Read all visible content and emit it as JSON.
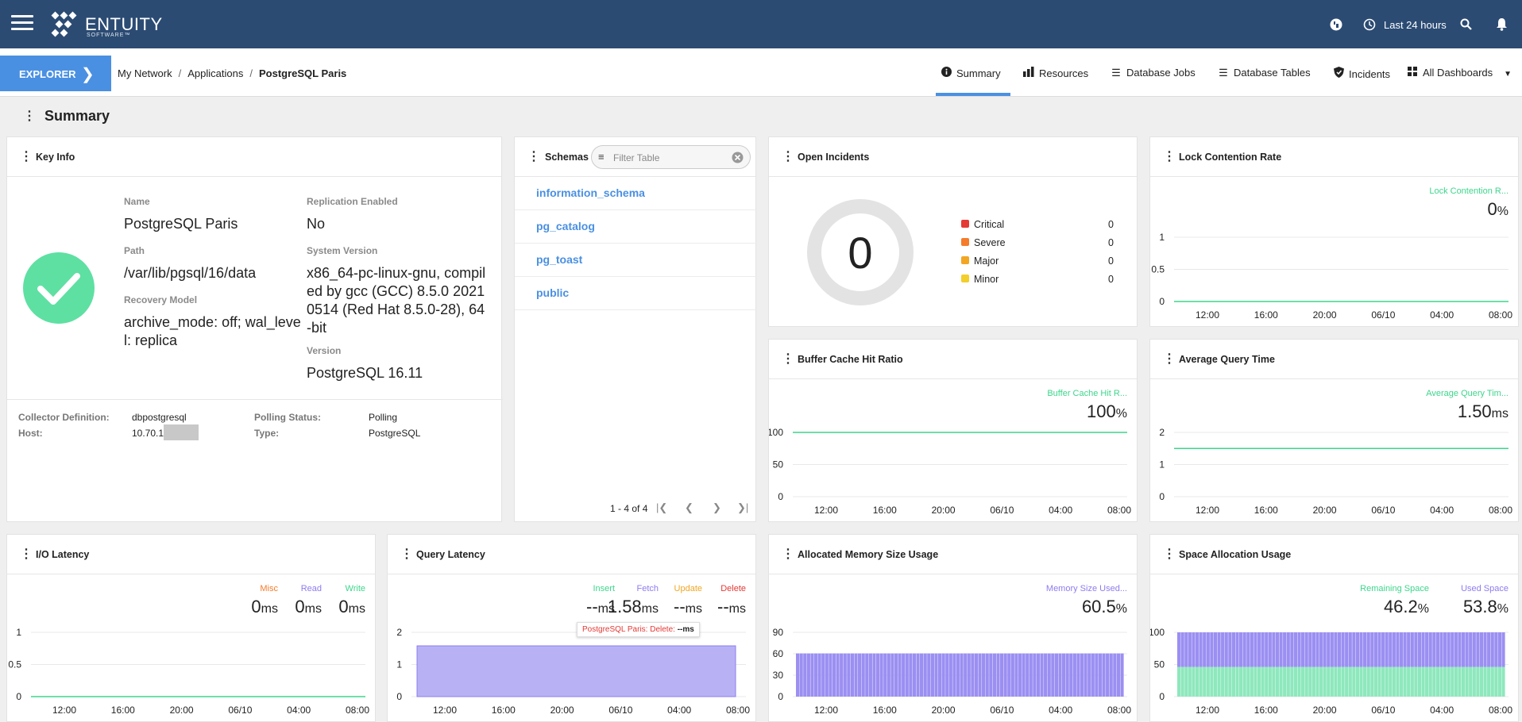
{
  "topbar": {
    "brand": "ENTUITY",
    "brand_sub": "SOFTWARE™",
    "time_range": "Last 24 hours"
  },
  "nav": {
    "explorer": "EXPLORER",
    "breadcrumb": [
      "My Network",
      "Applications",
      "PostgreSQL Paris"
    ],
    "tabs": [
      {
        "label": "Summary",
        "icon": "info-icon"
      },
      {
        "label": "Resources",
        "icon": "bar-chart-icon"
      },
      {
        "label": "Database Jobs",
        "icon": "list-icon"
      },
      {
        "label": "Database Tables",
        "icon": "list-icon"
      },
      {
        "label": "Incidents",
        "icon": "shield-icon"
      },
      {
        "label": "All Dashboards",
        "icon": "grid-icon"
      }
    ]
  },
  "page": {
    "title": "Summary"
  },
  "key_info": {
    "title": "Key Info",
    "name_label": "Name",
    "name": "PostgreSQL Paris",
    "path_label": "Path",
    "path": "/var/lib/pgsql/16/data",
    "recovery_label": "Recovery Model",
    "recovery": "archive_mode: off; wal_level: replica",
    "replication_label": "Replication Enabled",
    "replication": "No",
    "sysver_label": "System Version",
    "sysver": "x86_64-pc-linux-gnu, compiled by gcc (GCC) 8.5.0 20210514 (Red Hat 8.5.0-28), 64-bit",
    "version_label": "Version",
    "version": "PostgreSQL 16.11",
    "collector_label": "Collector Definition:",
    "collector": "dbpostgresql",
    "host_label": "Host:",
    "host": "10.70.1",
    "polling_label": "Polling Status:",
    "polling": "Polling",
    "type_label": "Type:",
    "type": "PostgreSQL"
  },
  "schemas": {
    "title": "Schemas",
    "filter_placeholder": "Filter Table",
    "rows": [
      "information_schema",
      "pg_catalog",
      "pg_toast",
      "public"
    ],
    "pager": "1 - 4 of 4"
  },
  "incidents": {
    "title": "Open Incidents",
    "total": "0",
    "legend": [
      {
        "label": "Critical",
        "count": "0",
        "color": "#e53935"
      },
      {
        "label": "Severe",
        "count": "0",
        "color": "#f57c2a"
      },
      {
        "label": "Major",
        "count": "0",
        "color": "#f2a623"
      },
      {
        "label": "Minor",
        "count": "0",
        "color": "#f2cf2a"
      }
    ]
  },
  "time_ticks": [
    "12:00",
    "16:00",
    "20:00",
    "06/10",
    "04:00",
    "08:00"
  ],
  "colors": {
    "green": "#3dd68c",
    "purple": "#8e7cf0",
    "orange": "#f57c2a",
    "red": "#e53935",
    "yellow": "#f2a623",
    "blue": "#4a90e2"
  },
  "chart_data": [
    {
      "id": "lock",
      "title": "Lock Contention Rate",
      "type": "line",
      "series": [
        {
          "name": "Lock Contention R...",
          "value": "0",
          "unit": "%"
        }
      ],
      "yticks": [
        "1",
        "0.5",
        "0"
      ],
      "ylim": [
        0,
        1
      ],
      "level": 0
    },
    {
      "id": "buffer",
      "title": "Buffer Cache Hit Ratio",
      "type": "line",
      "series": [
        {
          "name": "Buffer Cache Hit R...",
          "value": "100",
          "unit": "%"
        }
      ],
      "yticks": [
        "100",
        "50",
        "0"
      ],
      "ylim": [
        0,
        100
      ],
      "level": 100
    },
    {
      "id": "avgq",
      "title": "Average Query Time",
      "type": "line",
      "series": [
        {
          "name": "Average Query Tim...",
          "value": "1.50",
          "unit": "ms"
        }
      ],
      "yticks": [
        "2",
        "1",
        "0"
      ],
      "ylim": [
        0,
        2
      ],
      "level": 1.5
    },
    {
      "id": "io",
      "title": "I/O Latency",
      "type": "line",
      "series": [
        {
          "name": "Misc",
          "value": "0",
          "unit": "ms"
        },
        {
          "name": "Read",
          "value": "0",
          "unit": "ms"
        },
        {
          "name": "Write",
          "value": "0",
          "unit": "ms"
        }
      ],
      "yticks": [
        "1",
        "0.5",
        "0"
      ],
      "ylim": [
        0,
        1
      ],
      "level": 0
    },
    {
      "id": "ql",
      "title": "Query Latency",
      "type": "area",
      "series": [
        {
          "name": "Insert",
          "value": "--",
          "unit": "ms"
        },
        {
          "name": "Fetch",
          "value": "1.58",
          "unit": "ms"
        },
        {
          "name": "Update",
          "value": "--",
          "unit": "ms"
        },
        {
          "name": "Delete",
          "value": "--",
          "unit": "ms"
        }
      ],
      "yticks": [
        "2",
        "1",
        "0"
      ],
      "ylim": [
        0,
        2
      ],
      "level": 1.58,
      "tooltip": {
        "label": "PostgreSQL Paris: Delete:",
        "value": "--ms"
      }
    },
    {
      "id": "mem",
      "title": "Allocated Memory Size Usage",
      "type": "bar",
      "series": [
        {
          "name": "Memory Size Used...",
          "value": "60.5",
          "unit": "%"
        }
      ],
      "yticks": [
        "90",
        "60",
        "30",
        "0"
      ],
      "ylim": [
        0,
        90
      ],
      "level": 60.5
    },
    {
      "id": "space",
      "title": "Space Allocation Usage",
      "type": "bar",
      "series": [
        {
          "name": "Remaining Space",
          "value": "46.2",
          "unit": "%"
        },
        {
          "name": "Used Space",
          "value": "53.8",
          "unit": "%"
        }
      ],
      "yticks": [
        "100",
        "50",
        "0"
      ],
      "ylim": [
        0,
        100
      ],
      "level": 53.8
    }
  ]
}
